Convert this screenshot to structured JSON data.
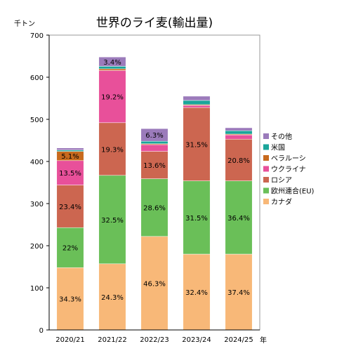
{
  "chart_data": {
    "type": "bar",
    "stacked": true,
    "title": "世界のライ麦(輸出量)",
    "y_unit": "千トン",
    "x_unit": "年",
    "ylim": [
      0,
      700
    ],
    "yticks": [
      0,
      100,
      200,
      300,
      400,
      500,
      600,
      700
    ],
    "categories": [
      "2020/21",
      "2021/22",
      "2022/23",
      "2023/24",
      "2024/25"
    ],
    "legend_position": "right",
    "series": [
      {
        "name": "カナダ",
        "color": "#F8B878",
        "values": [
          148,
          157,
          222,
          180,
          180
        ],
        "labels": [
          "34.3%",
          "24.3%",
          "46.3%",
          "32.4%",
          "37.4%"
        ]
      },
      {
        "name": "欧州連合(EU)",
        "color": "#6ABF58",
        "values": [
          95,
          210,
          137,
          174,
          174
        ],
        "labels": [
          "22%",
          "32.5%",
          "28.6%",
          "31.5%",
          "36.4%"
        ]
      },
      {
        "name": "ロシア",
        "color": "#CC6650",
        "values": [
          101,
          125,
          65,
          174,
          99
        ],
        "labels": [
          "23.4%",
          "19.3%",
          "13.6%",
          "31.5%",
          "20.8%"
        ]
      },
      {
        "name": "ウクライナ",
        "color": "#E8509A",
        "values": [
          58,
          124,
          16,
          5,
          10
        ],
        "labels": [
          "13.5%",
          "19.2%",
          "",
          "",
          ""
        ]
      },
      {
        "name": "ベラルーシ",
        "color": "#C86A1E",
        "values": [
          22,
          4,
          2,
          2,
          2
        ],
        "labels": [
          "5.1%",
          "",
          "",
          "",
          ""
        ]
      },
      {
        "name": "米国",
        "color": "#1AA59A",
        "values": [
          3,
          6,
          6,
          10,
          8
        ],
        "labels": [
          "",
          "",
          "",
          "",
          ""
        ]
      },
      {
        "name": "その他",
        "color": "#9B7BBB",
        "values": [
          5,
          22,
          30,
          10,
          7
        ],
        "labels": [
          "",
          "3.4%",
          "6.3%",
          "",
          ""
        ]
      }
    ]
  }
}
